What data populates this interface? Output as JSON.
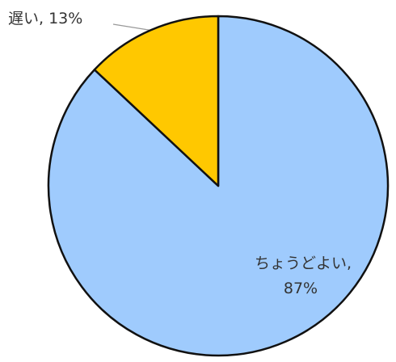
{
  "chart_data": {
    "type": "pie",
    "categories": [
      "ちょうどよい",
      "遅い"
    ],
    "values": [
      87,
      13
    ],
    "value_labels": [
      "87%",
      "13%"
    ],
    "label_separator": ",",
    "colors": [
      "#9fcbfd",
      "#ffc800"
    ]
  }
}
